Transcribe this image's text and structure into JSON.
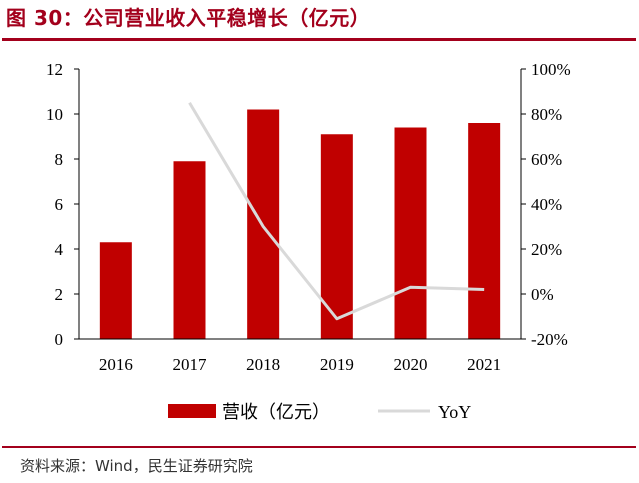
{
  "header": {
    "title": "图 30：公司营业收入平稳增长（亿元）"
  },
  "footer": {
    "source": "资料来源：Wind，民生证券研究院"
  },
  "colors": {
    "accent": "#a3001c",
    "bar": "#c00000",
    "line": "#d9d9d9"
  },
  "chart_data": {
    "type": "bar",
    "categories": [
      "2016",
      "2017",
      "2018",
      "2019",
      "2020",
      "2021"
    ],
    "series": [
      {
        "name": "营收（亿元）",
        "type": "bar",
        "axis": "left",
        "values": [
          4.3,
          7.9,
          10.2,
          9.1,
          9.4,
          9.6
        ]
      },
      {
        "name": "YoY",
        "type": "line",
        "axis": "right",
        "values": [
          null,
          0.85,
          0.3,
          -0.11,
          0.03,
          0.02
        ]
      }
    ],
    "y_left": {
      "min": 0,
      "max": 12,
      "ticks": [
        "0",
        "2",
        "4",
        "6",
        "8",
        "10",
        "12"
      ]
    },
    "y_right": {
      "min": -0.2,
      "max": 1.0,
      "ticks": [
        "-20%",
        "0%",
        "20%",
        "40%",
        "60%",
        "80%",
        "100%"
      ]
    },
    "title": "",
    "xlabel": "",
    "ylabel": "",
    "grid": false,
    "legend": "bottom"
  }
}
